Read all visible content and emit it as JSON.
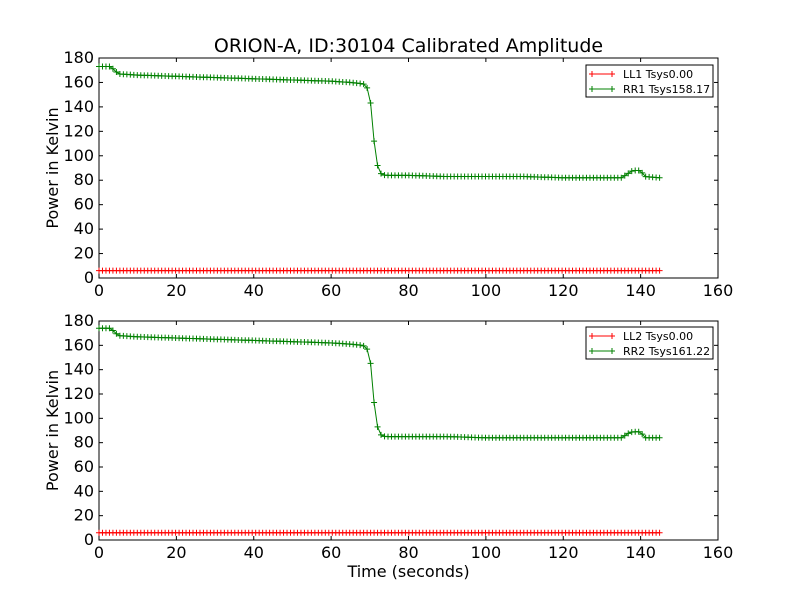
{
  "chart_data": [
    {
      "type": "line",
      "title": "ORION-A, ID:30104 Calibrated Amplitude",
      "xlabel": "",
      "ylabel": "Power in Kelvin",
      "xlim": [
        0,
        160
      ],
      "ylim": [
        0,
        180
      ],
      "xticks": [
        "0",
        "20",
        "40",
        "60",
        "80",
        "100",
        "120",
        "140",
        "160"
      ],
      "yticks": [
        "0",
        "20",
        "40",
        "60",
        "80",
        "100",
        "120",
        "140",
        "160",
        "180"
      ],
      "grid": false,
      "legend": "top-right",
      "series": [
        {
          "name": "LL1 Tsys0.00",
          "color": "#ff0000",
          "marker": "plus",
          "x": [
            0,
            145
          ],
          "y": [
            6,
            6
          ]
        },
        {
          "name": "RR1 Tsys158.17",
          "color": "#008000",
          "marker": "plus",
          "x": [
            0,
            3,
            4,
            5,
            10,
            20,
            30,
            40,
            50,
            60,
            65,
            68,
            69,
            70,
            70.5,
            71,
            71.5,
            72,
            72.5,
            73,
            74,
            75,
            80,
            90,
            100,
            110,
            120,
            130,
            135,
            137,
            138,
            139,
            140,
            141,
            145
          ],
          "y": [
            173,
            173,
            170,
            167,
            166,
            165,
            164,
            163,
            162,
            161,
            160,
            159,
            158,
            150,
            133,
            115,
            100,
            92,
            87,
            85,
            84,
            84,
            84,
            83,
            83,
            83,
            82,
            82,
            82,
            86,
            88,
            88,
            88,
            83,
            82
          ]
        }
      ]
    },
    {
      "type": "line",
      "title": "",
      "xlabel": "Time (seconds)",
      "ylabel": "Power in Kelvin",
      "xlim": [
        0,
        160
      ],
      "ylim": [
        0,
        180
      ],
      "xticks": [
        "0",
        "20",
        "40",
        "60",
        "80",
        "100",
        "120",
        "140",
        "160"
      ],
      "yticks": [
        "0",
        "20",
        "40",
        "60",
        "80",
        "100",
        "120",
        "140",
        "160",
        "180"
      ],
      "grid": false,
      "legend": "top-right",
      "series": [
        {
          "name": "LL2 Tsys0.00",
          "color": "#ff0000",
          "marker": "plus",
          "x": [
            0,
            145
          ],
          "y": [
            6,
            6
          ]
        },
        {
          "name": "RR2 Tsys161.22",
          "color": "#008000",
          "marker": "plus",
          "x": [
            0,
            3,
            4,
            5,
            10,
            20,
            30,
            40,
            50,
            60,
            65,
            68,
            69,
            70,
            70.5,
            71,
            71.5,
            72,
            72.5,
            73,
            74,
            75,
            80,
            90,
            100,
            110,
            120,
            130,
            135,
            137,
            138,
            139,
            140,
            141,
            145
          ],
          "y": [
            174,
            174,
            171,
            168,
            167,
            166,
            165,
            164,
            163,
            162,
            161,
            160,
            159,
            152,
            135,
            116,
            101,
            93,
            88,
            86,
            85,
            85,
            85,
            85,
            84,
            84,
            84,
            84,
            84,
            88,
            89,
            89,
            89,
            84,
            84
          ]
        }
      ]
    }
  ]
}
